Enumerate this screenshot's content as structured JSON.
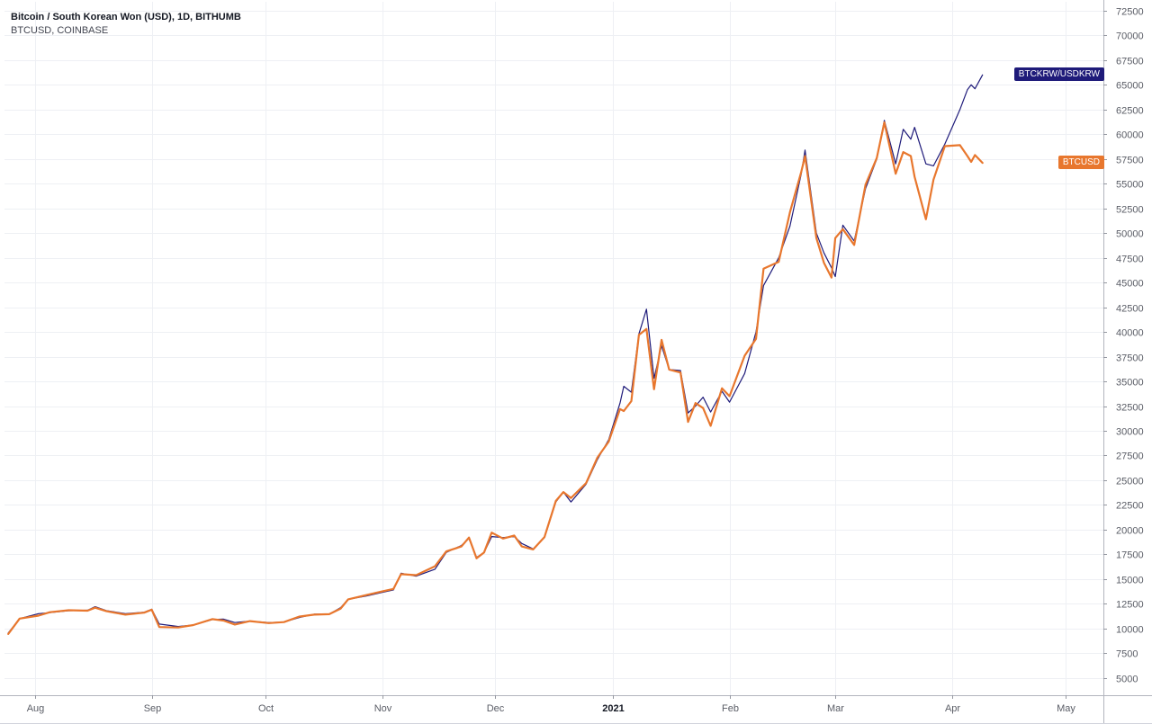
{
  "header": {
    "symbol_line": "Bitcoin / South Korean Won (USD), 1D, BITHUMB",
    "compare_line": "BTCUSD, COINBASE"
  },
  "colors": {
    "btckrw": "#1f1b7a",
    "btcusd": "#e8772e",
    "grid": "#eef0f4",
    "axis_text": "#5a5d66"
  },
  "chart_data": {
    "type": "line",
    "title": "Bitcoin / South Korean Won (USD), 1D, BITHUMB",
    "xlabel": "",
    "ylabel": "",
    "x_ticks": [
      {
        "label": "Aug",
        "date": "2020-08-01",
        "bold": false
      },
      {
        "label": "Sep",
        "date": "2020-09-01",
        "bold": false
      },
      {
        "label": "Oct",
        "date": "2020-10-01",
        "bold": false
      },
      {
        "label": "Nov",
        "date": "2020-11-01",
        "bold": false
      },
      {
        "label": "Dec",
        "date": "2020-12-01",
        "bold": false
      },
      {
        "label": "2021",
        "date": "2021-01-01",
        "bold": true
      },
      {
        "label": "Feb",
        "date": "2021-02-01",
        "bold": false
      },
      {
        "label": "Mar",
        "date": "2021-03-01",
        "bold": false
      },
      {
        "label": "Apr",
        "date": "2021-04-01",
        "bold": false
      },
      {
        "label": "May",
        "date": "2021-05-01",
        "bold": false
      }
    ],
    "x_range": [
      "2020-07-24",
      "2021-05-11"
    ],
    "y_ticks": [
      5000,
      7500,
      10000,
      12500,
      15000,
      17500,
      20000,
      22500,
      25000,
      27500,
      30000,
      32500,
      35000,
      37500,
      40000,
      42500,
      45000,
      47500,
      50000,
      52500,
      55000,
      57500,
      60000,
      62500,
      65000,
      67500,
      70000,
      72500
    ],
    "ylim": [
      3250,
      73400
    ],
    "grid": true,
    "series": [
      {
        "name": "BTCKRW/USDKRW",
        "color": "#1f1b7a",
        "last_label": "BTCKRW/USDKRW",
        "points": [
          [
            "2020-07-25",
            9550
          ],
          [
            "2020-07-28",
            11000
          ],
          [
            "2020-08-02",
            11500
          ],
          [
            "2020-08-05",
            11600
          ],
          [
            "2020-08-10",
            11800
          ],
          [
            "2020-08-15",
            11850
          ],
          [
            "2020-08-17",
            12200
          ],
          [
            "2020-08-20",
            11800
          ],
          [
            "2020-08-25",
            11500
          ],
          [
            "2020-08-30",
            11650
          ],
          [
            "2020-09-01",
            11950
          ],
          [
            "2020-09-03",
            10450
          ],
          [
            "2020-09-08",
            10200
          ],
          [
            "2020-09-12",
            10350
          ],
          [
            "2020-09-17",
            10900
          ],
          [
            "2020-09-20",
            10950
          ],
          [
            "2020-09-23",
            10600
          ],
          [
            "2020-09-27",
            10750
          ],
          [
            "2020-10-02",
            10600
          ],
          [
            "2020-10-06",
            10650
          ],
          [
            "2020-10-10",
            11100
          ],
          [
            "2020-10-14",
            11450
          ],
          [
            "2020-10-18",
            11450
          ],
          [
            "2020-10-21",
            12100
          ],
          [
            "2020-10-23",
            12950
          ],
          [
            "2020-10-28",
            13300
          ],
          [
            "2020-11-01",
            13650
          ],
          [
            "2020-11-04",
            13900
          ],
          [
            "2020-11-06",
            15600
          ],
          [
            "2020-11-10",
            15300
          ],
          [
            "2020-11-15",
            16000
          ],
          [
            "2020-11-18",
            17700
          ],
          [
            "2020-11-22",
            18400
          ],
          [
            "2020-11-24",
            19100
          ],
          [
            "2020-11-26",
            17200
          ],
          [
            "2020-11-28",
            17700
          ],
          [
            "2020-11-30",
            19300
          ],
          [
            "2020-12-03",
            19200
          ],
          [
            "2020-12-06",
            19300
          ],
          [
            "2020-12-08",
            18600
          ],
          [
            "2020-12-11",
            18050
          ],
          [
            "2020-12-14",
            19200
          ],
          [
            "2020-12-17",
            22800
          ],
          [
            "2020-12-19",
            23800
          ],
          [
            "2020-12-21",
            22800
          ],
          [
            "2020-12-25",
            24600
          ],
          [
            "2020-12-28",
            27100
          ],
          [
            "2020-12-31",
            29100
          ],
          [
            "2021-01-03",
            32800
          ],
          [
            "2021-01-04",
            34500
          ],
          [
            "2021-01-06",
            33900
          ],
          [
            "2021-01-08",
            39800
          ],
          [
            "2021-01-10",
            42300
          ],
          [
            "2021-01-12",
            35300
          ],
          [
            "2021-01-14",
            38600
          ],
          [
            "2021-01-16",
            36200
          ],
          [
            "2021-01-19",
            36100
          ],
          [
            "2021-01-21",
            31800
          ],
          [
            "2021-01-23",
            32500
          ],
          [
            "2021-01-25",
            33400
          ],
          [
            "2021-01-27",
            31900
          ],
          [
            "2021-01-30",
            34000
          ],
          [
            "2021-02-01",
            32900
          ],
          [
            "2021-02-05",
            35800
          ],
          [
            "2021-02-08",
            40000
          ],
          [
            "2021-02-10",
            44700
          ],
          [
            "2021-02-14",
            47500
          ],
          [
            "2021-02-17",
            50700
          ],
          [
            "2021-02-20",
            56000
          ],
          [
            "2021-02-21",
            58400
          ],
          [
            "2021-02-24",
            50000
          ],
          [
            "2021-02-26",
            48000
          ],
          [
            "2021-02-28",
            46500
          ],
          [
            "2021-03-01",
            45600
          ],
          [
            "2021-03-03",
            50800
          ],
          [
            "2021-03-06",
            49200
          ],
          [
            "2021-03-09",
            54500
          ],
          [
            "2021-03-12",
            57500
          ],
          [
            "2021-03-14",
            61400
          ],
          [
            "2021-03-17",
            57000
          ],
          [
            "2021-03-19",
            60500
          ],
          [
            "2021-03-21",
            59500
          ],
          [
            "2021-03-22",
            60700
          ],
          [
            "2021-03-25",
            57000
          ],
          [
            "2021-03-27",
            56800
          ],
          [
            "2021-03-30",
            59000
          ],
          [
            "2021-04-03",
            62500
          ],
          [
            "2021-04-05",
            64500
          ],
          [
            "2021-04-06",
            65000
          ],
          [
            "2021-04-07",
            64600
          ],
          [
            "2021-04-09",
            66000
          ]
        ]
      },
      {
        "name": "BTCUSD",
        "color": "#e8772e",
        "last_label": "BTCUSD",
        "points": [
          [
            "2020-07-25",
            9450
          ],
          [
            "2020-07-28",
            11000
          ],
          [
            "2020-08-02",
            11300
          ],
          [
            "2020-08-05",
            11650
          ],
          [
            "2020-08-10",
            11850
          ],
          [
            "2020-08-15",
            11800
          ],
          [
            "2020-08-17",
            12100
          ],
          [
            "2020-08-20",
            11750
          ],
          [
            "2020-08-25",
            11400
          ],
          [
            "2020-08-30",
            11600
          ],
          [
            "2020-09-01",
            11900
          ],
          [
            "2020-09-03",
            10150
          ],
          [
            "2020-09-08",
            10100
          ],
          [
            "2020-09-12",
            10350
          ],
          [
            "2020-09-17",
            10950
          ],
          [
            "2020-09-20",
            10800
          ],
          [
            "2020-09-23",
            10400
          ],
          [
            "2020-09-27",
            10750
          ],
          [
            "2020-10-02",
            10550
          ],
          [
            "2020-10-06",
            10650
          ],
          [
            "2020-10-10",
            11200
          ],
          [
            "2020-10-14",
            11400
          ],
          [
            "2020-10-18",
            11450
          ],
          [
            "2020-10-21",
            12000
          ],
          [
            "2020-10-23",
            12950
          ],
          [
            "2020-10-28",
            13400
          ],
          [
            "2020-11-01",
            13750
          ],
          [
            "2020-11-04",
            14000
          ],
          [
            "2020-11-06",
            15500
          ],
          [
            "2020-11-10",
            15400
          ],
          [
            "2020-11-15",
            16300
          ],
          [
            "2020-11-18",
            17800
          ],
          [
            "2020-11-22",
            18300
          ],
          [
            "2020-11-24",
            19200
          ],
          [
            "2020-11-26",
            17100
          ],
          [
            "2020-11-28",
            17700
          ],
          [
            "2020-11-30",
            19700
          ],
          [
            "2020-12-03",
            19100
          ],
          [
            "2020-12-06",
            19400
          ],
          [
            "2020-12-08",
            18300
          ],
          [
            "2020-12-11",
            18000
          ],
          [
            "2020-12-14",
            19250
          ],
          [
            "2020-12-17",
            22900
          ],
          [
            "2020-12-19",
            23800
          ],
          [
            "2020-12-21",
            23200
          ],
          [
            "2020-12-25",
            24700
          ],
          [
            "2020-12-28",
            27300
          ],
          [
            "2020-12-31",
            28900
          ],
          [
            "2021-01-03",
            32200
          ],
          [
            "2021-01-04",
            32000
          ],
          [
            "2021-01-06",
            33000
          ],
          [
            "2021-01-08",
            39700
          ],
          [
            "2021-01-10",
            40300
          ],
          [
            "2021-01-12",
            34200
          ],
          [
            "2021-01-14",
            39200
          ],
          [
            "2021-01-16",
            36200
          ],
          [
            "2021-01-19",
            35900
          ],
          [
            "2021-01-21",
            30900
          ],
          [
            "2021-01-23",
            32800
          ],
          [
            "2021-01-25",
            32300
          ],
          [
            "2021-01-27",
            30500
          ],
          [
            "2021-01-30",
            34300
          ],
          [
            "2021-02-01",
            33500
          ],
          [
            "2021-02-05",
            37600
          ],
          [
            "2021-02-08",
            39300
          ],
          [
            "2021-02-10",
            46400
          ],
          [
            "2021-02-14",
            47100
          ],
          [
            "2021-02-17",
            52100
          ],
          [
            "2021-02-20",
            56200
          ],
          [
            "2021-02-21",
            57800
          ],
          [
            "2021-02-24",
            49500
          ],
          [
            "2021-02-26",
            47000
          ],
          [
            "2021-02-28",
            45500
          ],
          [
            "2021-03-01",
            49500
          ],
          [
            "2021-03-03",
            50400
          ],
          [
            "2021-03-06",
            48800
          ],
          [
            "2021-03-09",
            54900
          ],
          [
            "2021-03-12",
            57600
          ],
          [
            "2021-03-14",
            61200
          ],
          [
            "2021-03-17",
            56000
          ],
          [
            "2021-03-19",
            58200
          ],
          [
            "2021-03-21",
            57800
          ],
          [
            "2021-03-22",
            55700
          ],
          [
            "2021-03-25",
            51400
          ],
          [
            "2021-03-27",
            55400
          ],
          [
            "2021-03-30",
            58800
          ],
          [
            "2021-04-03",
            58900
          ],
          [
            "2021-04-05",
            57800
          ],
          [
            "2021-04-06",
            57200
          ],
          [
            "2021-04-07",
            57900
          ],
          [
            "2021-04-09",
            57100
          ]
        ]
      }
    ]
  }
}
